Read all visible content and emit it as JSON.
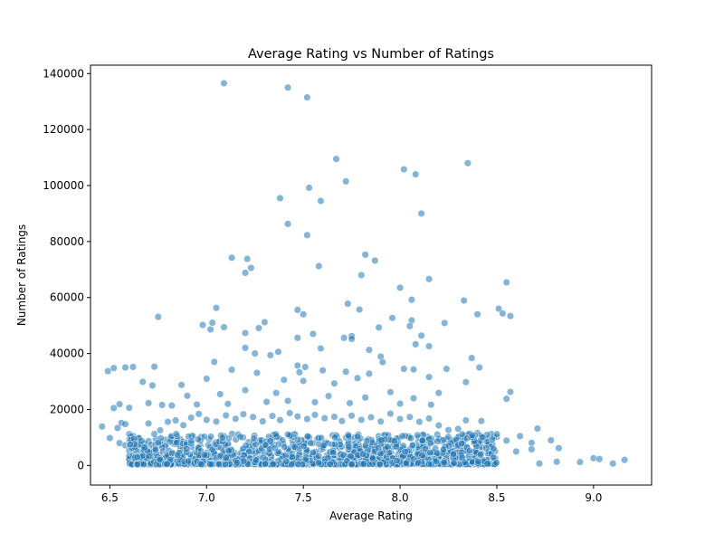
{
  "chart_data": {
    "type": "scatter",
    "title": "Average Rating vs Number of Ratings",
    "xlabel": "Average Rating",
    "ylabel": "Number of Ratings",
    "xlim": [
      6.4,
      9.3
    ],
    "ylim": [
      -7000,
      143000
    ],
    "x_ticks": [
      6.5,
      7.0,
      7.5,
      8.0,
      8.5,
      9.0
    ],
    "x_tick_labels": [
      "6.5",
      "7.0",
      "7.5",
      "8.0",
      "8.5",
      "9.0"
    ],
    "y_ticks": [
      0,
      20000,
      40000,
      60000,
      80000,
      100000,
      120000,
      140000
    ],
    "y_tick_labels": [
      "0",
      "20000",
      "40000",
      "60000",
      "80000",
      "100000",
      "120000",
      "140000"
    ],
    "grid": false,
    "legend": "none",
    "marker_color": "#1f77b4",
    "marker_alpha": 0.55,
    "points": [
      [
        7.09,
        136500
      ],
      [
        7.42,
        135000
      ],
      [
        7.52,
        131500
      ],
      [
        7.67,
        109500
      ],
      [
        8.35,
        108000
      ],
      [
        8.02,
        105800
      ],
      [
        8.08,
        104000
      ],
      [
        7.72,
        101500
      ],
      [
        7.53,
        99200
      ],
      [
        7.38,
        95500
      ],
      [
        7.59,
        94500
      ],
      [
        8.11,
        90000
      ],
      [
        7.42,
        86300
      ],
      [
        7.52,
        82300
      ],
      [
        7.82,
        75300
      ],
      [
        7.13,
        74200
      ],
      [
        7.21,
        73800
      ],
      [
        7.87,
        73200
      ],
      [
        7.58,
        71200
      ],
      [
        7.23,
        70600
      ],
      [
        7.2,
        68800
      ],
      [
        7.8,
        68000
      ],
      [
        8.15,
        66600
      ],
      [
        8.55,
        65400
      ],
      [
        8.0,
        63500
      ],
      [
        8.06,
        59200
      ],
      [
        8.33,
        58900
      ],
      [
        7.73,
        57800
      ],
      [
        7.05,
        56300
      ],
      [
        8.51,
        56000
      ],
      [
        7.47,
        55600
      ],
      [
        7.79,
        55700
      ],
      [
        8.53,
        54300
      ],
      [
        8.4,
        54000
      ],
      [
        7.5,
        54000
      ],
      [
        8.57,
        53400
      ],
      [
        6.75,
        53100
      ],
      [
        7.96,
        52700
      ],
      [
        7.3,
        51200
      ],
      [
        8.06,
        51800
      ],
      [
        8.23,
        50900
      ],
      [
        7.03,
        51000
      ],
      [
        6.98,
        50200
      ],
      [
        7.27,
        49100
      ],
      [
        7.09,
        49400
      ],
      [
        7.02,
        48600
      ],
      [
        7.47,
        45600
      ],
      [
        8.05,
        49800
      ],
      [
        7.89,
        49300
      ],
      [
        7.55,
        47000
      ],
      [
        7.2,
        47300
      ],
      [
        8.11,
        46400
      ],
      [
        7.75,
        46200
      ],
      [
        7.71,
        45600
      ],
      [
        7.75,
        45200
      ],
      [
        8.08,
        43300
      ],
      [
        8.15,
        42600
      ],
      [
        7.2,
        42000
      ],
      [
        7.59,
        41800
      ],
      [
        7.84,
        41300
      ],
      [
        7.25,
        40000
      ],
      [
        7.37,
        40600
      ],
      [
        7.33,
        39400
      ],
      [
        7.9,
        38900
      ],
      [
        8.37,
        38400
      ],
      [
        7.91,
        36900
      ],
      [
        7.04,
        37000
      ],
      [
        6.62,
        35200
      ],
      [
        6.58,
        35000
      ],
      [
        6.73,
        35300
      ],
      [
        6.52,
        34800
      ],
      [
        6.49,
        33700
      ],
      [
        7.47,
        35700
      ],
      [
        7.51,
        35200
      ],
      [
        8.02,
        34500
      ],
      [
        8.07,
        34300
      ],
      [
        8.24,
        34500
      ],
      [
        8.41,
        35000
      ],
      [
        7.48,
        33300
      ],
      [
        7.13,
        34200
      ],
      [
        7.6,
        34000
      ],
      [
        7.72,
        33500
      ],
      [
        7.26,
        33100
      ],
      [
        7.84,
        32800
      ],
      [
        8.15,
        31600
      ],
      [
        7.78,
        31200
      ],
      [
        8.34,
        29800
      ],
      [
        7.0,
        31000
      ],
      [
        7.4,
        30600
      ],
      [
        7.5,
        30200
      ],
      [
        6.67,
        29900
      ],
      [
        6.72,
        28600
      ],
      [
        6.87,
        28800
      ],
      [
        7.66,
        29300
      ],
      [
        7.95,
        26200
      ],
      [
        8.57,
        26300
      ],
      [
        8.55,
        23800
      ],
      [
        7.2,
        26900
      ],
      [
        7.36,
        25900
      ],
      [
        7.07,
        25500
      ],
      [
        6.9,
        24900
      ],
      [
        7.63,
        24800
      ],
      [
        7.82,
        24300
      ],
      [
        8.07,
        24000
      ],
      [
        8.2,
        25900
      ],
      [
        6.55,
        21900
      ],
      [
        6.52,
        20500
      ],
      [
        6.6,
        20600
      ],
      [
        6.7,
        22300
      ],
      [
        6.77,
        21600
      ],
      [
        6.82,
        21400
      ],
      [
        6.95,
        21800
      ],
      [
        7.11,
        22000
      ],
      [
        7.31,
        22700
      ],
      [
        7.42,
        23100
      ],
      [
        7.56,
        22600
      ],
      [
        7.74,
        22300
      ],
      [
        8.0,
        22100
      ],
      [
        8.16,
        21700
      ],
      [
        8.34,
        16100
      ],
      [
        8.42,
        15900
      ],
      [
        8.62,
        10500
      ],
      [
        8.71,
        13200
      ],
      [
        8.78,
        9000
      ],
      [
        8.68,
        8100
      ],
      [
        8.82,
        6200
      ],
      [
        8.93,
        1200
      ],
      [
        9.0,
        2600
      ],
      [
        9.03,
        2300
      ],
      [
        9.1,
        700
      ],
      [
        9.16,
        2000
      ],
      [
        8.72,
        700
      ],
      [
        8.81,
        1300
      ],
      [
        8.68,
        5800
      ],
      [
        8.6,
        5000
      ],
      [
        6.46,
        13900
      ],
      [
        6.5,
        9800
      ],
      [
        6.54,
        13400
      ],
      [
        6.56,
        15200
      ],
      [
        6.58,
        14800
      ],
      [
        6.6,
        11200
      ],
      [
        6.55,
        8000
      ],
      [
        6.58,
        7200
      ],
      [
        6.62,
        10600
      ],
      [
        6.65,
        9800
      ],
      [
        6.66,
        5100
      ],
      [
        6.7,
        15000
      ],
      [
        6.76,
        12600
      ],
      [
        6.8,
        15600
      ],
      [
        6.84,
        16100
      ],
      [
        6.88,
        14400
      ],
      [
        6.92,
        17100
      ],
      [
        6.96,
        18400
      ],
      [
        7.0,
        16300
      ],
      [
        7.05,
        15700
      ],
      [
        7.1,
        17900
      ],
      [
        7.15,
        16700
      ],
      [
        7.19,
        18300
      ],
      [
        7.24,
        17300
      ],
      [
        7.29,
        15800
      ],
      [
        7.34,
        17700
      ],
      [
        7.38,
        16200
      ],
      [
        7.43,
        18700
      ],
      [
        7.47,
        17500
      ],
      [
        7.52,
        16600
      ],
      [
        7.56,
        18100
      ],
      [
        7.61,
        16900
      ],
      [
        7.66,
        17400
      ],
      [
        7.7,
        15900
      ],
      [
        7.75,
        17800
      ],
      [
        7.8,
        16300
      ],
      [
        7.85,
        17200
      ],
      [
        7.9,
        15700
      ],
      [
        7.95,
        18500
      ],
      [
        8.0,
        16600
      ],
      [
        8.05,
        17300
      ],
      [
        8.1,
        15600
      ],
      [
        8.15,
        16800
      ],
      [
        8.2,
        14300
      ],
      [
        8.25,
        12700
      ],
      [
        8.3,
        13100
      ],
      [
        8.36,
        10300
      ],
      [
        8.4,
        11600
      ],
      [
        8.45,
        9600
      ],
      [
        8.5,
        10200
      ],
      [
        8.55,
        8900
      ],
      [
        8.38,
        8500
      ],
      [
        8.33,
        8700
      ]
    ]
  }
}
